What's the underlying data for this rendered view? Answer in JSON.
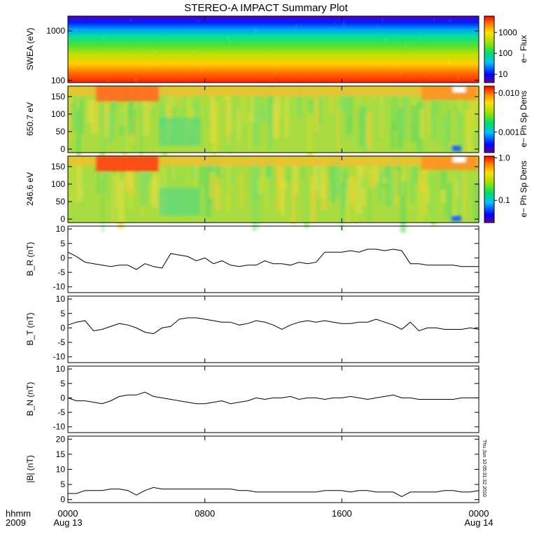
{
  "title": "STEREO-A IMPACT Summary Plot",
  "timestamp": "Thu Jun 10 05:31:32 2010",
  "time_axis": {
    "row1_label": "hhmm",
    "row2_label": "2009",
    "ticks": [
      {
        "hours": 0,
        "label": "0000",
        "sublabel": "Aug 13"
      },
      {
        "hours": 8,
        "label": "0800",
        "sublabel": ""
      },
      {
        "hours": 16,
        "label": "1600",
        "sublabel": ""
      },
      {
        "hours": 24,
        "label": "0000",
        "sublabel": "Aug 14"
      }
    ]
  },
  "chart_data": [
    {
      "type": "heatmap",
      "ylabel": "SWEA (eV)",
      "yscale": "log",
      "ylim": [
        90,
        2000
      ],
      "yticks": [
        {
          "v": 100,
          "label": "100"
        },
        {
          "v": 1000,
          "label": "1000"
        }
      ],
      "colorbar": {
        "label": "e− Flux",
        "scale": "log",
        "range": [
          4,
          6000
        ],
        "ticks": [
          {
            "v": 10,
            "label": "10"
          },
          {
            "v": 100,
            "label": "100"
          },
          {
            "v": 1000,
            "label": "1000"
          }
        ]
      }
    },
    {
      "type": "heatmap",
      "ylabel": "650.7 eV",
      "ylim": [
        -10,
        180
      ],
      "yticks": [
        {
          "v": 0,
          "label": "0"
        },
        {
          "v": 50,
          "label": "50"
        },
        {
          "v": 100,
          "label": "100"
        },
        {
          "v": 150,
          "label": "150"
        }
      ],
      "colorbar": {
        "label": "e− Ph Sp Dens",
        "scale": "log",
        "range": [
          0.0003,
          0.015
        ],
        "ticks": [
          {
            "v": 0.001,
            "label": "0.001"
          },
          {
            "v": 0.01,
            "label": "0.010"
          }
        ]
      }
    },
    {
      "type": "heatmap",
      "ylabel": "246.6 eV",
      "ylim": [
        -10,
        180
      ],
      "yticks": [
        {
          "v": 0,
          "label": "0"
        },
        {
          "v": 50,
          "label": "50"
        },
        {
          "v": 100,
          "label": "100"
        },
        {
          "v": 150,
          "label": "150"
        }
      ],
      "colorbar": {
        "label": "e− Ph Sp Dens",
        "scale": "log",
        "range": [
          0.03,
          1.1
        ],
        "ticks": [
          {
            "v": 0.1,
            "label": "0.1"
          },
          {
            "v": 1.0,
            "label": "1.0"
          }
        ]
      }
    },
    {
      "type": "line",
      "ylabel": "B_R (nT)",
      "ylim": [
        -12,
        11
      ],
      "yticks": [
        -10,
        -5,
        0,
        5,
        10
      ],
      "x_hours": [
        0,
        0.5,
        1,
        1.5,
        2,
        2.5,
        3,
        3.5,
        4,
        4.5,
        5,
        5.5,
        6,
        6.5,
        7,
        7.5,
        8,
        8.5,
        9,
        9.5,
        10,
        10.5,
        11,
        11.5,
        12,
        12.5,
        13,
        13.5,
        14,
        14.5,
        15,
        15.5,
        16,
        16.5,
        17,
        17.5,
        18,
        18.5,
        19,
        19.5,
        20,
        20.5,
        21,
        21.5,
        22,
        22.5,
        23,
        23.5,
        24
      ],
      "values": [
        2,
        0.5,
        -1.5,
        -2,
        -2.5,
        -3,
        -2.5,
        -2.5,
        -4,
        -2,
        -3,
        -3.5,
        1.5,
        1,
        0.5,
        -1,
        0,
        -2,
        -1,
        -2.5,
        -3,
        -2.5,
        -2.5,
        -1,
        -2,
        -2,
        -2.5,
        -1.5,
        -2,
        -1.5,
        2,
        2,
        2,
        2.5,
        2,
        3,
        3,
        2.5,
        3,
        2.5,
        -2,
        -2,
        -2.5,
        -2.5,
        -2.5,
        -2.5,
        -3,
        -3,
        -3
      ]
    },
    {
      "type": "line",
      "ylabel": "B_T (nT)",
      "ylim": [
        -12,
        11
      ],
      "yticks": [
        -10,
        -5,
        0,
        5,
        10
      ],
      "x_hours": [
        0,
        0.5,
        1,
        1.5,
        2,
        2.5,
        3,
        3.5,
        4,
        4.5,
        5,
        5.5,
        6,
        6.5,
        7,
        7.5,
        8,
        8.5,
        9,
        9.5,
        10,
        10.5,
        11,
        11.5,
        12,
        12.5,
        13,
        13.5,
        14,
        14.5,
        15,
        15.5,
        16,
        16.5,
        17,
        17.5,
        18,
        18.5,
        19,
        19.5,
        20,
        20.5,
        21,
        21.5,
        22,
        22.5,
        23,
        23.5,
        24
      ],
      "values": [
        1,
        2,
        2.5,
        -1,
        -0.5,
        0.5,
        1.5,
        1,
        0,
        -1.5,
        -2,
        0,
        0.5,
        3,
        3.5,
        3.5,
        3,
        2.5,
        2,
        2,
        1,
        1.5,
        2.5,
        2,
        1,
        -0.5,
        1,
        2,
        2.5,
        2,
        2.5,
        2,
        1.5,
        1.5,
        2,
        2,
        3,
        2,
        1,
        -0.5,
        2,
        -1,
        0,
        0,
        -0.5,
        -0.5,
        -0.5,
        0,
        -0.5
      ]
    },
    {
      "type": "line",
      "ylabel": "B_N (nT)",
      "ylim": [
        -12,
        11
      ],
      "yticks": [
        -10,
        -5,
        0,
        5,
        10
      ],
      "x_hours": [
        0,
        0.5,
        1,
        1.5,
        2,
        2.5,
        3,
        3.5,
        4,
        4.5,
        5,
        5.5,
        6,
        6.5,
        7,
        7.5,
        8,
        8.5,
        9,
        9.5,
        10,
        10.5,
        11,
        11.5,
        12,
        12.5,
        13,
        13.5,
        14,
        14.5,
        15,
        15.5,
        16,
        16.5,
        17,
        17.5,
        18,
        18.5,
        19,
        19.5,
        20,
        20.5,
        21,
        21.5,
        22,
        22.5,
        23,
        23.5,
        24
      ],
      "values": [
        0,
        -1,
        -1,
        -1.5,
        -2,
        -1,
        0.5,
        1,
        1,
        2,
        0.5,
        0,
        -0.5,
        -1,
        -1.5,
        -2,
        -2,
        -1.5,
        -1,
        -2,
        -1.5,
        -1,
        0,
        -0.5,
        0,
        0,
        0.5,
        -0.5,
        0,
        0,
        -0.5,
        0,
        0,
        0.5,
        0,
        -0.5,
        0,
        0.5,
        1,
        0,
        0,
        -0.5,
        -0.5,
        -0.5,
        -0.5,
        -0.5,
        0,
        0,
        0
      ]
    },
    {
      "type": "line",
      "ylabel": "|B| (nT)",
      "ylim": [
        -1,
        21
      ],
      "yticks": [
        0,
        5,
        10,
        15,
        20
      ],
      "x_hours": [
        0,
        0.5,
        1,
        1.5,
        2,
        2.5,
        3,
        3.5,
        4,
        4.5,
        5,
        5.5,
        6,
        6.5,
        7,
        7.5,
        8,
        8.5,
        9,
        9.5,
        10,
        10.5,
        11,
        11.5,
        12,
        12.5,
        13,
        13.5,
        14,
        14.5,
        15,
        15.5,
        16,
        16.5,
        17,
        17.5,
        18,
        18.5,
        19,
        19.5,
        20,
        20.5,
        21,
        21.5,
        22,
        22.5,
        23,
        23.5,
        24
      ],
      "values": [
        2,
        2,
        3,
        3,
        3,
        3.5,
        3.5,
        3,
        1.5,
        3,
        4,
        3.5,
        3.5,
        3.5,
        3.5,
        3.5,
        3.5,
        3.5,
        3.5,
        3.5,
        3,
        3,
        2.5,
        2.5,
        2.5,
        2.5,
        2.5,
        2.5,
        2.5,
        2.5,
        3,
        3,
        3,
        2.5,
        3,
        3,
        2.5,
        2.5,
        2.5,
        1,
        2.5,
        2.5,
        2.5,
        2.5,
        3,
        3,
        2.5,
        2.5,
        3
      ]
    }
  ]
}
